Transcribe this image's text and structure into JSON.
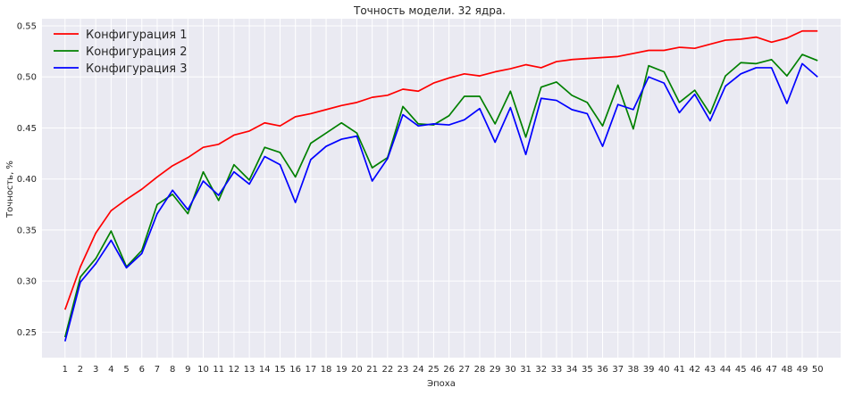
{
  "chart_data": {
    "type": "line",
    "title": "Точность модели. 32 ядра.",
    "xlabel": "Эпоха",
    "ylabel": "Точность, %",
    "x": [
      1,
      2,
      3,
      4,
      5,
      6,
      7,
      8,
      9,
      10,
      11,
      12,
      13,
      14,
      15,
      16,
      17,
      18,
      19,
      20,
      21,
      22,
      23,
      24,
      25,
      26,
      27,
      28,
      29,
      30,
      31,
      32,
      33,
      34,
      35,
      36,
      37,
      38,
      39,
      40,
      41,
      42,
      43,
      44,
      45,
      46,
      47,
      48,
      49,
      50
    ],
    "xlim": [
      -0.5,
      51.5
    ],
    "ylim": [
      0.225,
      0.557
    ],
    "yticks": [
      0.25,
      0.3,
      0.35,
      0.4,
      0.45,
      0.5,
      0.55
    ],
    "ytick_labels": [
      "0.25",
      "0.30",
      "0.35",
      "0.40",
      "0.45",
      "0.50",
      "0.55"
    ],
    "grid": true,
    "legend_position": "top-left",
    "background": "#eaeaf2",
    "series": [
      {
        "name": "Конфигурация 1",
        "color": "#ff0000",
        "values": [
          0.272,
          0.314,
          0.347,
          0.369,
          0.38,
          0.39,
          0.402,
          0.413,
          0.421,
          0.431,
          0.434,
          0.443,
          0.447,
          0.455,
          0.452,
          0.461,
          0.464,
          0.468,
          0.472,
          0.475,
          0.48,
          0.482,
          0.488,
          0.486,
          0.494,
          0.499,
          0.503,
          0.501,
          0.505,
          0.508,
          0.512,
          0.509,
          0.515,
          0.517,
          0.518,
          0.519,
          0.52,
          0.523,
          0.526,
          0.526,
          0.529,
          0.528,
          0.532,
          0.536,
          0.537,
          0.539,
          0.534,
          0.538,
          0.545,
          0.545
        ]
      },
      {
        "name": "Конфигурация 2",
        "color": "#008000",
        "values": [
          0.245,
          0.304,
          0.322,
          0.349,
          0.314,
          0.33,
          0.375,
          0.385,
          0.366,
          0.407,
          0.379,
          0.414,
          0.399,
          0.431,
          0.426,
          0.402,
          0.435,
          0.445,
          0.455,
          0.445,
          0.411,
          0.421,
          0.471,
          0.454,
          0.453,
          0.462,
          0.481,
          0.481,
          0.454,
          0.486,
          0.441,
          0.49,
          0.495,
          0.482,
          0.475,
          0.452,
          0.492,
          0.449,
          0.511,
          0.505,
          0.475,
          0.487,
          0.464,
          0.501,
          0.514,
          0.513,
          0.517,
          0.501,
          0.522,
          0.516
        ]
      },
      {
        "name": "Конфигурация 3",
        "color": "#0000ff",
        "values": [
          0.241,
          0.299,
          0.317,
          0.34,
          0.313,
          0.327,
          0.366,
          0.389,
          0.37,
          0.398,
          0.384,
          0.407,
          0.395,
          0.422,
          0.414,
          0.377,
          0.419,
          0.432,
          0.439,
          0.442,
          0.398,
          0.42,
          0.463,
          0.452,
          0.454,
          0.453,
          0.458,
          0.469,
          0.436,
          0.47,
          0.424,
          0.479,
          0.477,
          0.468,
          0.464,
          0.432,
          0.473,
          0.468,
          0.5,
          0.494,
          0.465,
          0.483,
          0.457,
          0.491,
          0.503,
          0.509,
          0.509,
          0.474,
          0.513,
          0.5
        ]
      }
    ]
  }
}
